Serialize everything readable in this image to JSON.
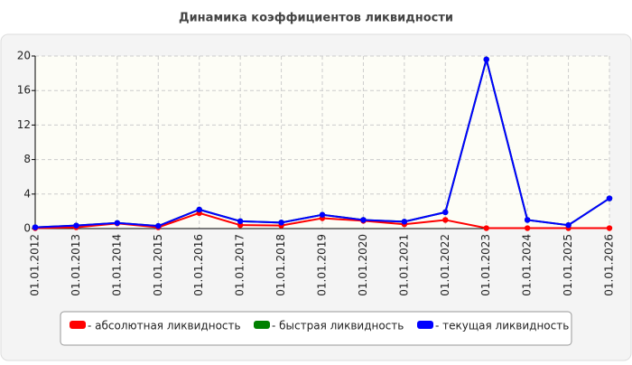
{
  "chart_data": {
    "type": "line",
    "title": "Динамика коэффициентов ликвидности",
    "categories": [
      "01.01.2012",
      "01.01.2013",
      "01.01.2014",
      "01.01.2015",
      "01.01.2016",
      "01.01.2017",
      "01.01.2018",
      "01.01.2019",
      "01.01.2020",
      "01.01.2021",
      "01.01.2022",
      "01.01.2023",
      "01.01.2024",
      "01.01.2025",
      "01.01.2026"
    ],
    "series": [
      {
        "name": "- абсолютная ликвидность",
        "color": "#ff0000",
        "values": [
          0.05,
          0.15,
          0.6,
          0.15,
          1.8,
          0.4,
          0.35,
          1.2,
          0.9,
          0.5,
          1.0,
          0.05,
          0.05,
          0.05,
          0.05
        ]
      },
      {
        "name": "- быстрая ликвидность",
        "color": "#008000",
        "values": [
          0.15,
          0.35,
          0.65,
          0.3,
          2.2,
          0.85,
          0.7,
          1.6,
          1.0,
          0.8,
          1.9,
          19.6,
          1.0,
          0.4,
          3.5
        ]
      },
      {
        "name": "- текущая ликвидность",
        "color": "#0000ff",
        "values": [
          0.15,
          0.35,
          0.65,
          0.3,
          2.2,
          0.85,
          0.7,
          1.6,
          1.0,
          0.8,
          1.9,
          19.6,
          1.0,
          0.4,
          3.5
        ]
      }
    ],
    "ylim": [
      0,
      20
    ],
    "yticks": [
      0,
      4,
      8,
      12,
      16,
      20
    ],
    "grid": true
  }
}
